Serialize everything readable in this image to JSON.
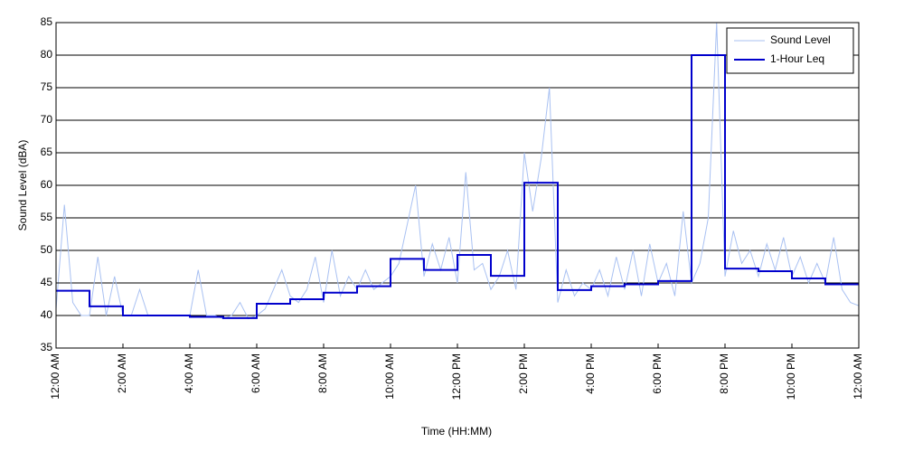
{
  "chart_data": {
    "type": "line",
    "xlabel": "Time (HH:MM)",
    "ylabel": "Sound Level (dBA)",
    "xlim": [
      0,
      24
    ],
    "xticks": [
      {
        "value": 0,
        "label": "12:00 AM"
      },
      {
        "value": 2,
        "label": "2:00 AM"
      },
      {
        "value": 4,
        "label": "4:00 AM"
      },
      {
        "value": 6,
        "label": "6:00 AM"
      },
      {
        "value": 8,
        "label": "8:00 AM"
      },
      {
        "value": 10,
        "label": "10:00 AM"
      },
      {
        "value": 12,
        "label": "12:00 PM"
      },
      {
        "value": 14,
        "label": "2:00 PM"
      },
      {
        "value": 16,
        "label": "4:00 PM"
      },
      {
        "value": 18,
        "label": "6:00 PM"
      },
      {
        "value": 20,
        "label": "8:00 PM"
      },
      {
        "value": 22,
        "label": "10:00 PM"
      },
      {
        "value": 24,
        "label": "12:00 AM"
      }
    ],
    "ylim": [
      35,
      85
    ],
    "yticks": [
      35,
      40,
      45,
      50,
      55,
      60,
      65,
      70,
      75,
      80,
      85
    ],
    "grid": "y",
    "legend": "upper right",
    "series": [
      {
        "name": "Sound Level",
        "color": "#a9c1f2",
        "width": 1,
        "step": false,
        "x": [
          0,
          0.25,
          0.5,
          0.75,
          1,
          1.25,
          1.5,
          1.75,
          2,
          2.25,
          2.5,
          2.75,
          3,
          3.25,
          3.5,
          3.75,
          4,
          4.25,
          4.5,
          4.75,
          5,
          5.25,
          5.5,
          5.75,
          6,
          6.25,
          6.5,
          6.75,
          7,
          7.25,
          7.5,
          7.75,
          8,
          8.25,
          8.5,
          8.75,
          9,
          9.25,
          9.5,
          9.75,
          10,
          10.25,
          10.5,
          10.75,
          11,
          11.25,
          11.5,
          11.75,
          12,
          12.25,
          12.5,
          12.75,
          13,
          13.25,
          13.5,
          13.75,
          14,
          14.25,
          14.5,
          14.75,
          15,
          15.25,
          15.5,
          15.75,
          16,
          16.25,
          16.5,
          16.75,
          17,
          17.25,
          17.5,
          17.75,
          18,
          18.25,
          18.5,
          18.75,
          19,
          19.25,
          19.5,
          19.75,
          20,
          20.25,
          20.5,
          20.75,
          21,
          21.25,
          21.5,
          21.75,
          22,
          22.25,
          22.5,
          22.75,
          23,
          23.25,
          23.5,
          23.75,
          24
        ],
        "values": [
          41,
          57,
          42,
          40,
          40,
          49,
          40,
          46,
          40,
          40,
          44,
          40,
          40,
          40,
          40,
          40,
          40,
          47,
          40,
          40,
          39.5,
          40,
          42,
          39.5,
          40,
          41,
          44,
          47,
          43,
          42,
          44,
          49,
          42,
          50,
          43,
          46,
          44,
          47,
          44,
          45,
          46,
          48,
          54,
          60,
          46,
          51,
          47,
          52,
          45,
          62,
          47,
          48,
          44,
          46,
          50,
          44,
          65,
          56,
          64,
          75,
          42,
          47,
          43,
          45,
          44,
          47,
          43,
          49,
          44,
          50,
          43,
          51,
          45,
          48,
          43,
          56,
          45,
          48,
          55,
          85,
          46,
          53,
          48,
          50,
          46,
          51,
          47,
          52,
          46,
          49,
          45,
          48,
          45,
          52,
          44,
          42,
          41.5
        ]
      },
      {
        "name": "1-Hour Leq",
        "color": "#0000cc",
        "width": 2,
        "step": true,
        "x": [
          0,
          1,
          2,
          3,
          4,
          5,
          6,
          7,
          8,
          9,
          10,
          11,
          12,
          13,
          14,
          15,
          16,
          17,
          18,
          19,
          20,
          21,
          22,
          23,
          24
        ],
        "values": [
          43.8,
          41.4,
          40.0,
          40.0,
          39.8,
          39.6,
          41.8,
          42.5,
          43.5,
          44.5,
          48.7,
          47.0,
          49.3,
          46.1,
          60.4,
          43.9,
          44.5,
          44.8,
          45.3,
          80.0,
          47.2,
          46.8,
          45.7,
          44.8,
          44.8
        ]
      }
    ]
  }
}
